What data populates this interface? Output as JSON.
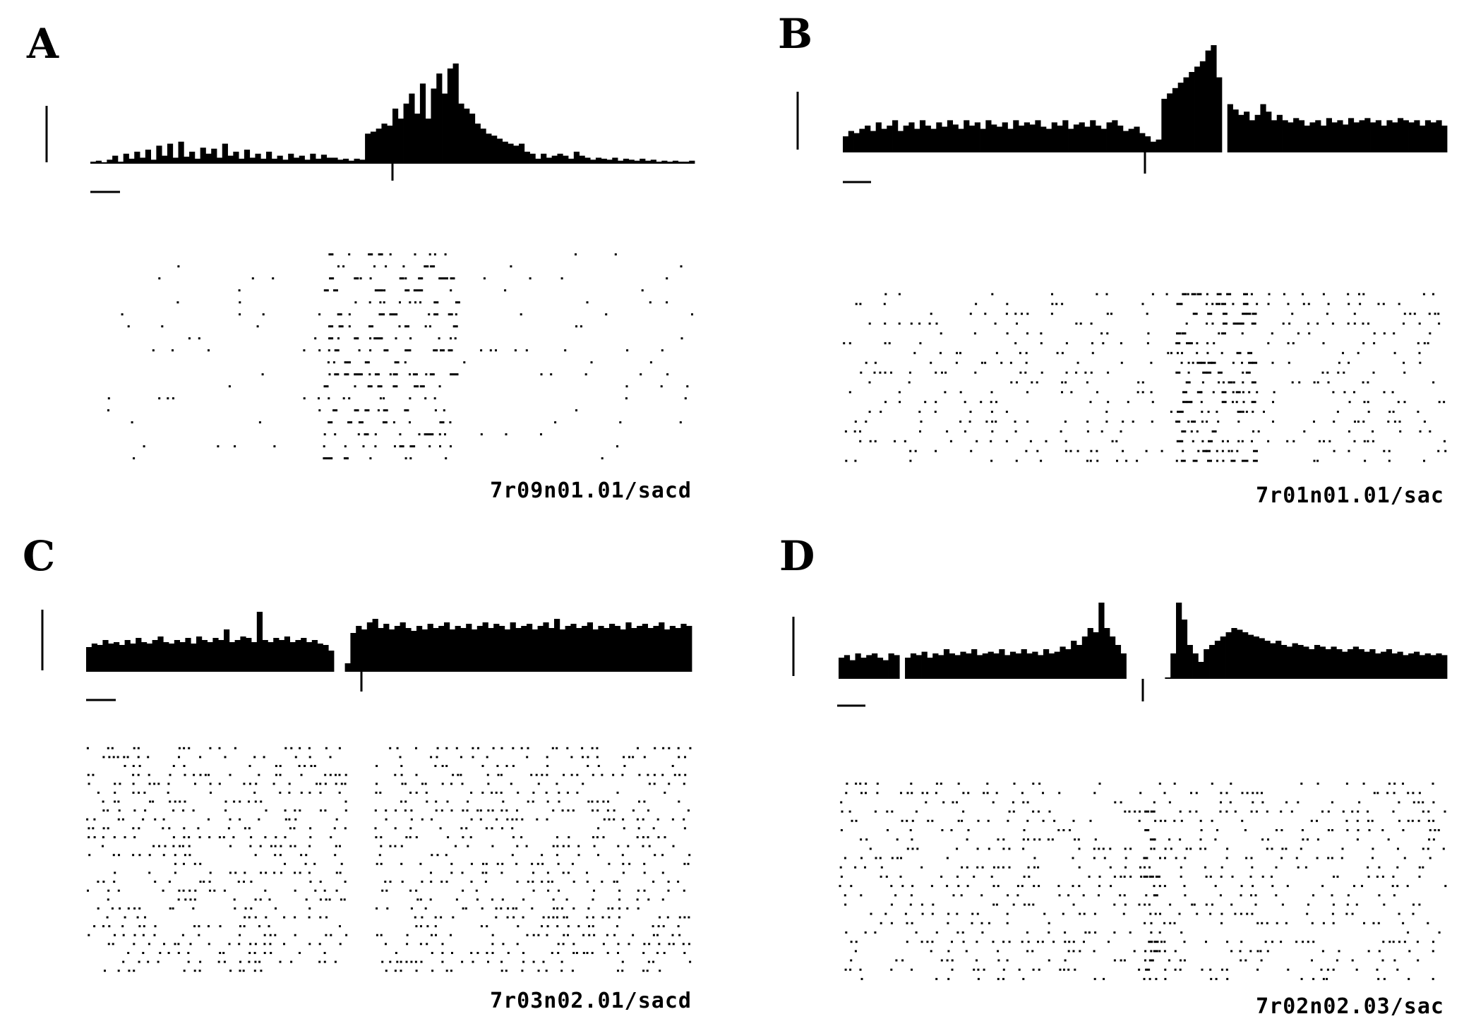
{
  "figure": {
    "panels": [
      {
        "letter": "A",
        "id_label": "7r09n01.01/sacd"
      },
      {
        "letter": "B",
        "id_label": "7r01n01.01/sac"
      },
      {
        "letter": "C",
        "id_label": "7r03n02.01/sacd"
      },
      {
        "letter": "D",
        "id_label": "7r02n02.03/sac"
      }
    ]
  },
  "chart_data": [
    {
      "type": "bar",
      "panel": "A",
      "title": "",
      "description_note_free": true,
      "histogram": {
        "bins": 110,
        "gaps": [],
        "values": [
          0.02,
          0.03,
          0.01,
          0.04,
          0.08,
          0.02,
          0.1,
          0.05,
          0.12,
          0.06,
          0.14,
          0.04,
          0.18,
          0.08,
          0.2,
          0.06,
          0.22,
          0.07,
          0.12,
          0.05,
          0.16,
          0.1,
          0.15,
          0.06,
          0.2,
          0.08,
          0.12,
          0.05,
          0.14,
          0.06,
          0.1,
          0.05,
          0.12,
          0.05,
          0.08,
          0.04,
          0.1,
          0.06,
          0.08,
          0.04,
          0.1,
          0.05,
          0.09,
          0.06,
          0.06,
          0.04,
          0.05,
          0.03,
          0.05,
          0.04,
          0.3,
          0.32,
          0.35,
          0.4,
          0.38,
          0.55,
          0.45,
          0.6,
          0.7,
          0.5,
          0.8,
          0.45,
          0.75,
          0.9,
          0.7,
          0.95,
          1.0,
          0.6,
          0.55,
          0.5,
          0.4,
          0.35,
          0.3,
          0.28,
          0.25,
          0.22,
          0.2,
          0.18,
          0.2,
          0.12,
          0.1,
          0.05,
          0.1,
          0.06,
          0.08,
          0.1,
          0.08,
          0.05,
          0.12,
          0.08,
          0.06,
          0.04,
          0.06,
          0.05,
          0.04,
          0.06,
          0.03,
          0.05,
          0.04,
          0.03,
          0.05,
          0.03,
          0.04,
          0.02,
          0.03,
          0.02,
          0.03,
          0.02,
          0.02,
          0.03
        ],
        "saccade_marker_bin": 55
      },
      "raster": {
        "rows": 18,
        "burst": [
          0.38,
          0.6
        ],
        "base_rate": 0.05,
        "burst_rate": 0.35
      }
    },
    {
      "type": "bar",
      "panel": "B",
      "title": "",
      "histogram": {
        "bins": 110,
        "gaps": [
          69
        ],
        "values": [
          0.15,
          0.2,
          0.18,
          0.22,
          0.25,
          0.2,
          0.28,
          0.22,
          0.25,
          0.3,
          0.2,
          0.25,
          0.28,
          0.22,
          0.3,
          0.25,
          0.22,
          0.28,
          0.24,
          0.3,
          0.26,
          0.22,
          0.3,
          0.25,
          0.28,
          0.22,
          0.3,
          0.26,
          0.24,
          0.28,
          0.22,
          0.3,
          0.25,
          0.28,
          0.26,
          0.3,
          0.24,
          0.22,
          0.28,
          0.25,
          0.3,
          0.22,
          0.26,
          0.28,
          0.24,
          0.3,
          0.25,
          0.22,
          0.28,
          0.3,
          0.25,
          0.2,
          0.22,
          0.24,
          0.18,
          0.15,
          0.1,
          0.12,
          0.5,
          0.55,
          0.6,
          0.65,
          0.7,
          0.75,
          0.8,
          0.85,
          0.95,
          1.0,
          0.7,
          0.4,
          0.45,
          0.4,
          0.35,
          0.38,
          0.3,
          0.35,
          0.45,
          0.38,
          0.3,
          0.35,
          0.3,
          0.28,
          0.32,
          0.3,
          0.25,
          0.28,
          0.3,
          0.25,
          0.32,
          0.28,
          0.3,
          0.26,
          0.32,
          0.28,
          0.3,
          0.32,
          0.28,
          0.3,
          0.25,
          0.3,
          0.28,
          0.32,
          0.3,
          0.28,
          0.3,
          0.25,
          0.3,
          0.28,
          0.3,
          0.25
        ],
        "saccade_marker_bin": 55
      },
      "raster": {
        "rows": 18,
        "burst": [
          0.55,
          0.68
        ],
        "base_rate": 0.18,
        "burst_rate": 0.5
      }
    },
    {
      "type": "bar",
      "panel": "C",
      "title": "",
      "histogram": {
        "bins": 110,
        "gaps": [
          45,
          46
        ],
        "values": [
          0.35,
          0.4,
          0.38,
          0.45,
          0.4,
          0.42,
          0.38,
          0.45,
          0.4,
          0.48,
          0.42,
          0.4,
          0.45,
          0.5,
          0.42,
          0.4,
          0.45,
          0.42,
          0.48,
          0.4,
          0.5,
          0.45,
          0.42,
          0.48,
          0.45,
          0.6,
          0.42,
          0.45,
          0.5,
          0.48,
          0.42,
          0.85,
          0.45,
          0.42,
          0.48,
          0.45,
          0.5,
          0.42,
          0.45,
          0.48,
          0.42,
          0.45,
          0.4,
          0.38,
          0.3,
          0.0,
          0.0,
          0.12,
          0.55,
          0.65,
          0.6,
          0.7,
          0.75,
          0.62,
          0.68,
          0.6,
          0.65,
          0.7,
          0.62,
          0.58,
          0.65,
          0.6,
          0.68,
          0.62,
          0.65,
          0.7,
          0.6,
          0.65,
          0.62,
          0.68,
          0.6,
          0.65,
          0.7,
          0.62,
          0.68,
          0.65,
          0.6,
          0.7,
          0.62,
          0.65,
          0.68,
          0.6,
          0.65,
          0.7,
          0.62,
          0.75,
          0.6,
          0.65,
          0.68,
          0.62,
          0.65,
          0.7,
          0.6,
          0.65,
          0.62,
          0.68,
          0.65,
          0.6,
          0.7,
          0.62,
          0.65,
          0.68,
          0.62,
          0.65,
          0.7,
          0.6,
          0.65,
          0.62,
          0.68,
          0.65
        ],
        "saccade_marker_bin": 50
      },
      "raster": {
        "rows": 26,
        "burst": [
          0.43,
          0.47
        ],
        "base_rate": 0.3,
        "burst_rate": 0.0,
        "pause": true
      }
    },
    {
      "type": "bar",
      "panel": "D",
      "title": "",
      "histogram": {
        "bins": 110,
        "gaps": [
          11,
          52,
          53,
          54,
          55,
          56,
          57,
          58
        ],
        "values": [
          0.25,
          0.28,
          0.22,
          0.3,
          0.25,
          0.28,
          0.3,
          0.25,
          0.22,
          0.3,
          0.28,
          0.0,
          0.25,
          0.3,
          0.28,
          0.32,
          0.25,
          0.3,
          0.28,
          0.35,
          0.3,
          0.28,
          0.32,
          0.3,
          0.35,
          0.28,
          0.3,
          0.32,
          0.3,
          0.35,
          0.28,
          0.32,
          0.3,
          0.35,
          0.3,
          0.32,
          0.28,
          0.35,
          0.3,
          0.32,
          0.38,
          0.35,
          0.45,
          0.4,
          0.5,
          0.6,
          0.55,
          0.9,
          0.6,
          0.5,
          0.4,
          0.3,
          0.0,
          0.0,
          0.0,
          0.0,
          0.0,
          0.0,
          0.0,
          0.0,
          0.3,
          0.9,
          0.7,
          0.4,
          0.3,
          0.2,
          0.35,
          0.4,
          0.45,
          0.5,
          0.55,
          0.6,
          0.58,
          0.55,
          0.52,
          0.5,
          0.48,
          0.45,
          0.42,
          0.45,
          0.4,
          0.38,
          0.42,
          0.4,
          0.38,
          0.35,
          0.4,
          0.38,
          0.35,
          0.38,
          0.35,
          0.32,
          0.35,
          0.38,
          0.35,
          0.32,
          0.35,
          0.3,
          0.32,
          0.35,
          0.3,
          0.32,
          0.28,
          0.3,
          0.32,
          0.28,
          0.3,
          0.28,
          0.3,
          0.28
        ],
        "saccade_marker_bin": 55
      },
      "raster": {
        "rows": 22,
        "burst": [
          0.5,
          0.52
        ],
        "base_rate": 0.25,
        "burst_rate": 0.6
      }
    }
  ]
}
